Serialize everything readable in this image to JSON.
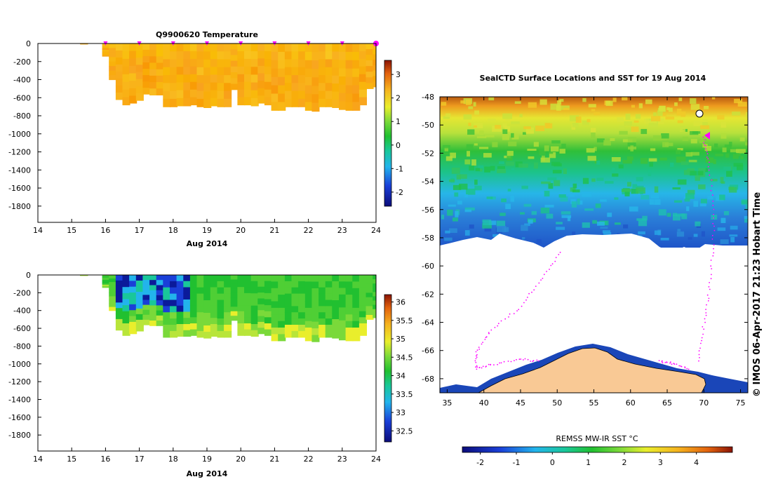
{
  "chart_data": [
    {
      "id": "temperature_section",
      "type": "heatmap",
      "title": "Q9900620  Temperature",
      "xlabel": "Aug 2014",
      "xlim": [
        14,
        24
      ],
      "x_ticks": [
        "14",
        "15",
        "16",
        "17",
        "18",
        "19",
        "20",
        "21",
        "22",
        "23",
        "24"
      ],
      "ylim": [
        -1980,
        0
      ],
      "y_ticks": [
        "0",
        "-200",
        "-400",
        "-600",
        "-800",
        "-1000",
        "-1200",
        "-1400",
        "-1600",
        "-1800"
      ],
      "colorbar": {
        "range": [
          -2.6,
          3.6
        ],
        "ticks": [
          "-2",
          "-1",
          "0",
          "1",
          "2",
          "3"
        ]
      },
      "profile_markers_x": [
        16,
        17,
        18,
        19,
        20,
        21,
        22,
        23,
        24
      ],
      "profiles": {
        "x": [
          15.25,
          15.9,
          16.1,
          16.3,
          16.5,
          16.7,
          16.9,
          17.1,
          17.3,
          17.5,
          17.7,
          17.9,
          18.1,
          18.3,
          18.5,
          18.7,
          18.9,
          19.1,
          19.3,
          19.5,
          19.7,
          19.9,
          20.1,
          20.3,
          20.5,
          20.7,
          20.9,
          21.1,
          21.3,
          21.5,
          21.7,
          21.9,
          22.1,
          22.3,
          22.5,
          22.7,
          22.9,
          23.1,
          23.3,
          23.5,
          23.7,
          23.9
        ],
        "max_depth": [
          -5,
          -140,
          -400,
          -620,
          -680,
          -660,
          -630,
          -560,
          -570,
          -570,
          -700,
          -700,
          -690,
          -690,
          -680,
          -700,
          -710,
          -690,
          -700,
          -700,
          -510,
          -680,
          -680,
          -690,
          -660,
          -680,
          -740,
          -740,
          -700,
          -700,
          -700,
          -740,
          -750,
          -700,
          -700,
          -710,
          -730,
          -740,
          -740,
          -680,
          -500,
          -480
        ]
      },
      "value_summary": "Mostly 1.5-2.5 °C (yellow-orange) throughout the upper 750 m"
    },
    {
      "id": "salinity_section",
      "type": "heatmap",
      "title": "",
      "xlabel": "Aug 2014",
      "xlim": [
        14,
        24
      ],
      "x_ticks": [
        "14",
        "15",
        "16",
        "17",
        "18",
        "19",
        "20",
        "21",
        "22",
        "23",
        "24"
      ],
      "ylim": [
        -1980,
        0
      ],
      "y_ticks": [
        "0",
        "-200",
        "-400",
        "-600",
        "-800",
        "-1000",
        "-1200",
        "-1400",
        "-1600",
        "-1800"
      ],
      "colorbar": {
        "range": [
          32.2,
          36.2
        ],
        "ticks": [
          "32.5",
          "33",
          "33.5",
          "34",
          "34.5",
          "35",
          "35.5",
          "36"
        ]
      },
      "value_summary": "Fresher (32.5-34) near surface on Aug 16-18, saltier (34.5-35) below 500 m"
    },
    {
      "id": "sst_map",
      "type": "heatmap",
      "title": "SealCTD Surface Locations and SST for 19 Aug 2014",
      "xlim": [
        34,
        76
      ],
      "x_ticks": [
        "35",
        "40",
        "45",
        "50",
        "55",
        "60",
        "65",
        "70",
        "75"
      ],
      "ylim": [
        -69,
        -48
      ],
      "y_ticks": [
        "-48",
        "-50",
        "-52",
        "-54",
        "-56",
        "-58",
        "-60",
        "-62",
        "-64",
        "-66",
        "-68"
      ],
      "colorbar_label": "REMSS MW-IR SST °C",
      "colorbar": {
        "range": [
          -2.5,
          5
        ],
        "ticks": [
          "-2",
          "-1",
          "0",
          "1",
          "2",
          "3",
          "4"
        ]
      },
      "credit": "© IMOS 06-Apr-2017 21:23 Hobart Time",
      "value_summary": "Warm (3-4 °C) in the north near -48, cooling to -1.5 °C at the ice edge near -58"
    }
  ],
  "colors": {
    "marker": "#ff00ff",
    "land": "#f9c995",
    "coast_blue": "#1a46b8"
  }
}
